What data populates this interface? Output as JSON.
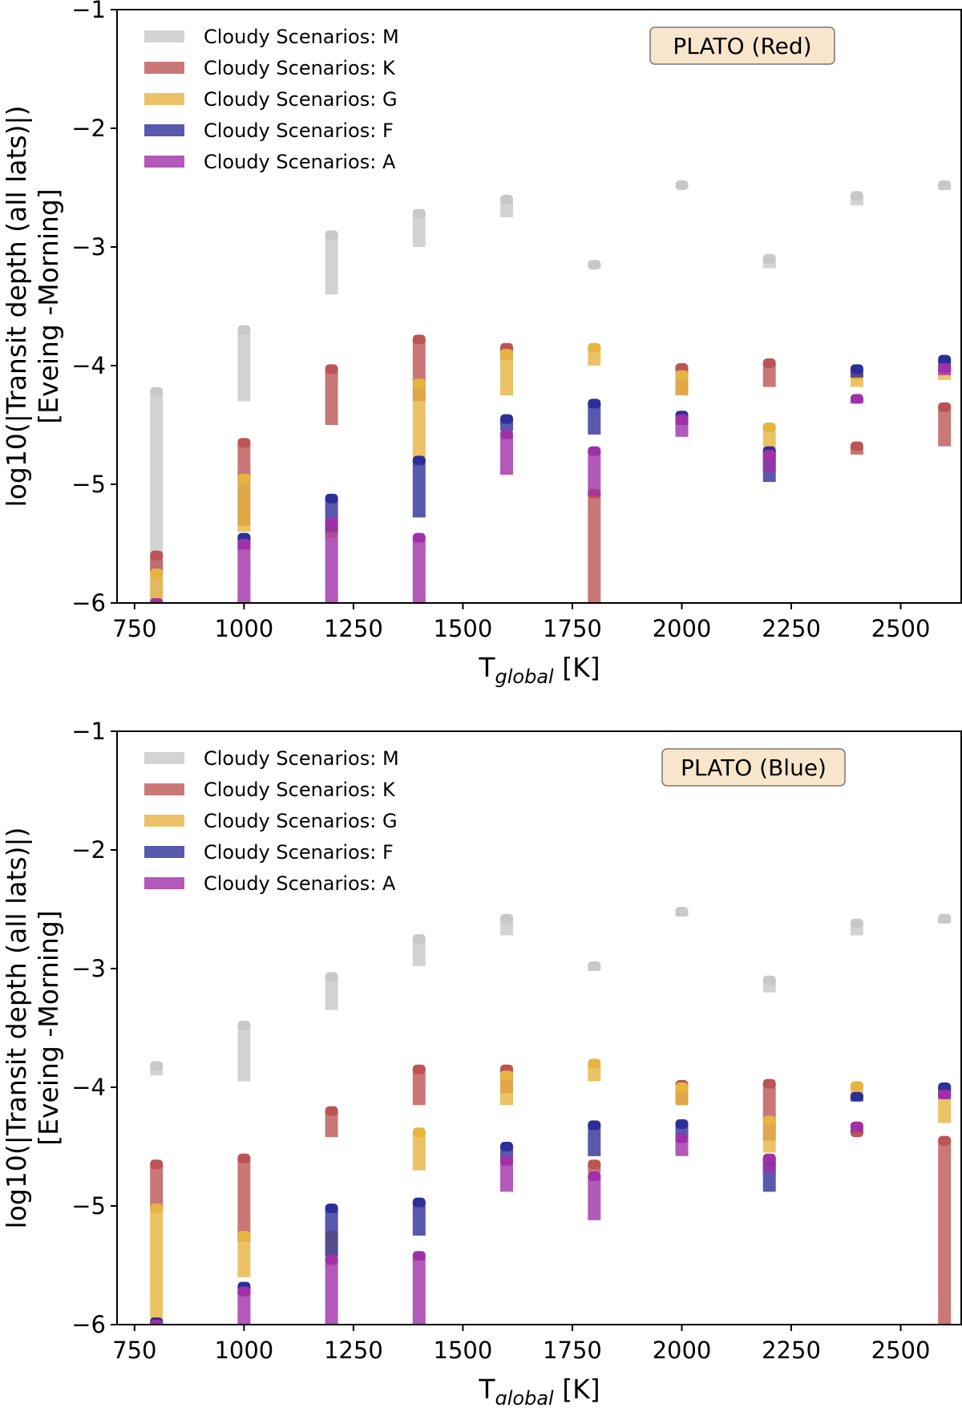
{
  "chart_data": [
    {
      "type": "range-bar",
      "badge": "PLATO (Red)",
      "xlabel_main": "T",
      "xlabel_sub": "global",
      "xlabel_unit": " [K]",
      "ylabel_line1": "log10(|Transit depth (all lats)|)",
      "ylabel_line2": "[Eveing -Morning]",
      "xlim": [
        710,
        2640
      ],
      "ylim": [
        -6,
        -1
      ],
      "xticks": [
        750,
        1000,
        1250,
        1500,
        1750,
        2000,
        2250,
        2500
      ],
      "yticks": [
        -1,
        -2,
        -3,
        -4,
        -5,
        -6
      ],
      "legend_position": "top-left",
      "series": [
        {
          "name": "Cloudy Scenarios: M",
          "color": "#c8c8c8",
          "x": [
            800,
            1000,
            1200,
            1400,
            1600,
            1800,
            2000,
            2200,
            2400,
            2600
          ],
          "top": [
            -4.22,
            -3.7,
            -2.9,
            -2.72,
            -2.6,
            -3.15,
            -2.48,
            -3.1,
            -2.57,
            -2.48
          ],
          "bottom": [
            -6.0,
            -4.3,
            -3.4,
            -3.0,
            -2.75,
            -3.18,
            -2.5,
            -3.18,
            -2.65,
            -2.52
          ]
        },
        {
          "name": "Cloudy Scenarios: K",
          "color": "#bb5555",
          "x": [
            800,
            1000,
            1200,
            1400,
            1600,
            1800,
            2000,
            2200,
            2400,
            2600
          ],
          "top": [
            -5.6,
            -4.65,
            -4.03,
            -3.78,
            -3.85,
            -5.08,
            -4.02,
            -3.98,
            -4.68,
            -4.35
          ],
          "bottom": [
            -5.75,
            -5.35,
            -4.5,
            -4.3,
            -3.95,
            -6.0,
            -4.25,
            -4.18,
            -4.75,
            -4.68
          ]
        },
        {
          "name": "Cloudy Scenarios: G",
          "color": "#e6b440",
          "x": [
            800,
            1000,
            1200,
            1400,
            1600,
            1800,
            2000,
            2200,
            2400,
            2600
          ],
          "top": [
            -5.75,
            -4.95,
            -5.35,
            -4.15,
            -3.9,
            -3.85,
            -4.08,
            -4.52,
            -4.08,
            -4.02
          ],
          "bottom": [
            -6.0,
            -5.4,
            -5.45,
            -4.8,
            -4.25,
            -4.0,
            -4.25,
            -4.8,
            -4.18,
            -4.12
          ]
        },
        {
          "name": "Cloudy Scenarios: F",
          "color": "#2e2e99",
          "x": [
            800,
            1000,
            1200,
            1400,
            1600,
            1800,
            2000,
            2200,
            2400,
            2600
          ],
          "top": [
            -6.0,
            -5.45,
            -5.12,
            -4.8,
            -4.45,
            -4.32,
            -4.42,
            -4.72,
            -4.03,
            -3.95
          ],
          "bottom": [
            -6.0,
            -5.55,
            -5.4,
            -5.28,
            -4.55,
            -4.58,
            -4.5,
            -4.98,
            -4.1,
            -4.05
          ]
        },
        {
          "name": "Cloudy Scenarios: A",
          "color": "#a030a8",
          "x": [
            800,
            1000,
            1200,
            1400,
            1600,
            1800,
            2000,
            2200,
            2400,
            2600
          ],
          "top": [
            -6.0,
            -5.5,
            -5.32,
            -5.45,
            -4.58,
            -4.72,
            -4.45,
            -4.75,
            -4.28,
            -4.02
          ],
          "bottom": [
            -6.0,
            -6.0,
            -6.0,
            -6.0,
            -4.92,
            -5.1,
            -4.6,
            -4.9,
            -4.32,
            -4.08
          ]
        }
      ]
    },
    {
      "type": "range-bar",
      "badge": "PLATO (Blue)",
      "xlabel_main": "T",
      "xlabel_sub": "global",
      "xlabel_unit": " [K]",
      "ylabel_line1": "log10(|Transit depth (all lats)|)",
      "ylabel_line2": "[Eveing -Morning]",
      "xlim": [
        710,
        2640
      ],
      "ylim": [
        -6,
        -1
      ],
      "xticks": [
        750,
        1000,
        1250,
        1500,
        1750,
        2000,
        2250,
        2500
      ],
      "yticks": [
        -1,
        -2,
        -3,
        -4,
        -5,
        -6
      ],
      "legend_position": "top-left",
      "series": [
        {
          "name": "Cloudy Scenarios: M",
          "color": "#c8c8c8",
          "x": [
            800,
            1000,
            1200,
            1400,
            1600,
            1800,
            2000,
            2200,
            2400,
            2600
          ],
          "top": [
            -3.82,
            -3.48,
            -3.07,
            -2.75,
            -2.58,
            -2.98,
            -2.52,
            -3.1,
            -2.62,
            -2.58
          ],
          "bottom": [
            -3.9,
            -3.95,
            -3.35,
            -2.98,
            -2.72,
            -3.02,
            -2.56,
            -3.2,
            -2.72,
            -2.62
          ]
        },
        {
          "name": "Cloudy Scenarios: K",
          "color": "#bb5555",
          "x": [
            800,
            1000,
            1200,
            1400,
            1600,
            1800,
            2000,
            2200,
            2400,
            2600
          ],
          "top": [
            -4.65,
            -4.6,
            -4.2,
            -3.85,
            -3.85,
            -4.65,
            -3.98,
            -3.97,
            -4.38,
            -4.45
          ],
          "bottom": [
            -5.05,
            -5.3,
            -4.42,
            -4.15,
            -4.05,
            -4.72,
            -4.15,
            -4.45,
            -4.4,
            -6.0
          ]
        },
        {
          "name": "Cloudy Scenarios: G",
          "color": "#e6b440",
          "x": [
            800,
            1000,
            1200,
            1400,
            1600,
            1800,
            2000,
            2200,
            2400,
            2600
          ],
          "top": [
            -5.02,
            -5.25,
            -5.25,
            -4.38,
            -3.9,
            -3.8,
            -4.0,
            -4.28,
            -3.99,
            -4.02
          ],
          "bottom": [
            -6.0,
            -5.6,
            -5.5,
            -4.7,
            -4.15,
            -3.95,
            -4.15,
            -4.55,
            -4.1,
            -4.3
          ]
        },
        {
          "name": "Cloudy Scenarios: F",
          "color": "#2e2e99",
          "x": [
            800,
            1000,
            1200,
            1400,
            1600,
            1800,
            2000,
            2200,
            2400,
            2600
          ],
          "top": [
            -5.98,
            -5.68,
            -5.02,
            -4.97,
            -4.5,
            -4.32,
            -4.31,
            -4.62,
            -4.08,
            -4.0
          ],
          "bottom": [
            -6.0,
            -5.75,
            -5.42,
            -5.25,
            -4.6,
            -4.58,
            -4.42,
            -4.88,
            -4.12,
            -4.08
          ]
        },
        {
          "name": "Cloudy Scenarios: A",
          "color": "#a030a8",
          "x": [
            800,
            1000,
            1200,
            1400,
            1600,
            1800,
            2000,
            2200,
            2400,
            2600
          ],
          "top": [
            -6.0,
            -5.72,
            -5.45,
            -5.42,
            -4.62,
            -4.75,
            -4.43,
            -4.6,
            -4.33,
            -4.06
          ],
          "bottom": [
            -6.0,
            -6.0,
            -6.0,
            -6.0,
            -4.88,
            -5.12,
            -4.58,
            -4.72,
            -4.38,
            -4.1
          ]
        }
      ]
    }
  ]
}
